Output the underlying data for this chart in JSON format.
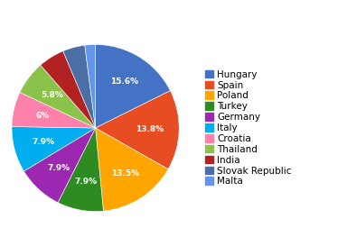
{
  "labels": [
    "Hungary",
    "Spain",
    "Poland",
    "Turkey",
    "Germany",
    "Italy",
    "Croatia",
    "Thailand",
    "India",
    "Slovak Republic",
    "Malta"
  ],
  "values": [
    15.6,
    13.8,
    13.5,
    7.9,
    7.9,
    7.9,
    6.0,
    5.8,
    4.5,
    3.8,
    1.8
  ],
  "colors": [
    "#4472C4",
    "#E84C22",
    "#FFA500",
    "#2E8B22",
    "#9C27B0",
    "#00AEEF",
    "#FF80AB",
    "#8BC34A",
    "#B22222",
    "#4A6FA5",
    "#6495ED"
  ],
  "pct_labels": [
    "15.6%",
    "13.8%",
    "13.5%",
    "7.9%",
    "7.9%",
    "7.9%",
    "6%",
    "5.8%",
    "",
    "",
    ""
  ],
  "shown_pcts": [
    true,
    true,
    true,
    true,
    true,
    true,
    true,
    true,
    false,
    false,
    false
  ],
  "title_fontsize": 9,
  "background_color": "#FFFFFF",
  "legend_fontsize": 7.5
}
